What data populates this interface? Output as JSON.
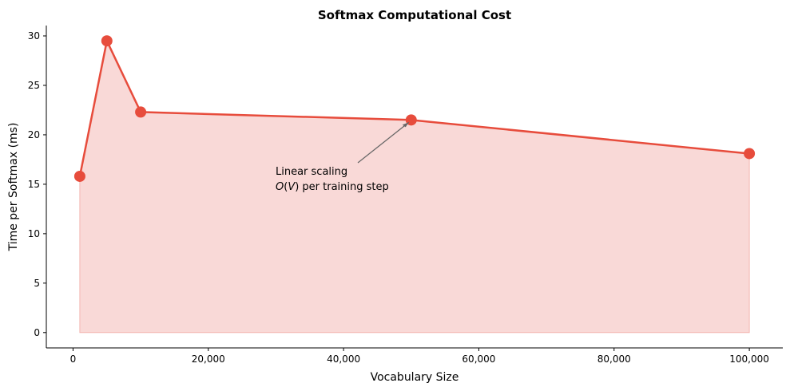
{
  "chart_data": {
    "type": "line",
    "title": "Softmax Computational Cost",
    "xlabel": "Vocabulary Size",
    "ylabel": "Time per Softmax (ms)",
    "x": [
      1000,
      5000,
      10000,
      50000,
      100000
    ],
    "series": [
      {
        "values": [
          15.8,
          29.5,
          22.3,
          21.5,
          18.1
        ],
        "fill_to_zero": true
      }
    ],
    "xlim": [
      -3950,
      104950
    ],
    "ylim": [
      -1.55,
      31.05
    ],
    "xticks": [
      0,
      20000,
      40000,
      60000,
      80000,
      100000
    ],
    "xtick_labels": [
      "0",
      "20,000",
      "40,000",
      "60,000",
      "80,000",
      "100,000"
    ],
    "yticks": [
      0,
      5,
      10,
      15,
      20,
      25,
      30
    ],
    "ytick_labels": [
      "0",
      "5",
      "10",
      "15",
      "20",
      "25",
      "30"
    ],
    "grid": false,
    "colors": {
      "line": "#e74c3c",
      "fill": "#f9d9d7",
      "arrow": "#666666"
    },
    "annotation": {
      "line1": "Linear scaling",
      "line2_italic_a": "O",
      "line2_paren_open": "(",
      "line2_italic_b": "V",
      "line2_rest": ") per training step",
      "text_at": [
        30000,
        14.5
      ],
      "arrow_to": [
        50000,
        21.5
      ]
    }
  }
}
